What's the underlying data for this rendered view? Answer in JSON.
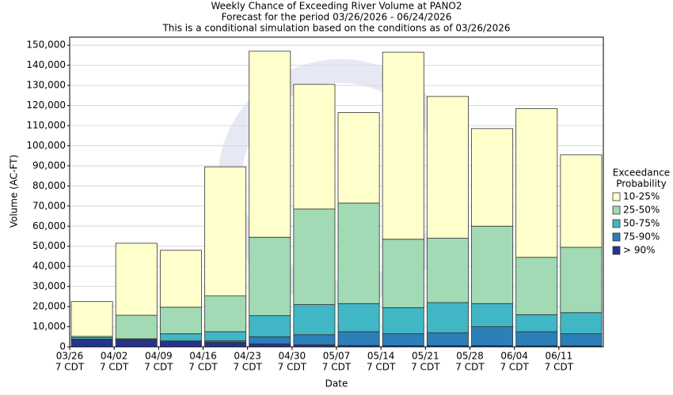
{
  "chart_data": {
    "type": "stacked-bar",
    "title": "Weekly Chance of Exceeding River Volume at PANO2",
    "subtitle": [
      "Forecast for the period 03/26/2026 - 06/24/2026",
      "This is a conditional simulation based on the conditions as of 03/26/2026"
    ],
    "x_label": "Date",
    "y_label": "Volume (AC-FT)",
    "categories": [
      "03/26",
      "04/02",
      "04/09",
      "04/16",
      "04/23",
      "04/30",
      "05/07",
      "05/14",
      "05/21",
      "05/28",
      "06/04",
      "06/11"
    ],
    "category_sublabels": [
      "7 CDT",
      "7 CDT",
      "7 CDT",
      "7 CDT",
      "7 CDT",
      "7 CDT",
      "7 CDT",
      "7 CDT",
      "7 CDT",
      "7 CDT",
      "7 CDT",
      "7 CDT"
    ],
    "legend_title": [
      "Exceedance",
      "Probability"
    ],
    "series": [
      {
        "name": "> 90%",
        "color": "#253494",
        "values": [
          3500,
          3300,
          2500,
          2200,
          1500,
          1000,
          700,
          600,
          600,
          600,
          500,
          500
        ]
      },
      {
        "name": "75-90%",
        "color": "#2c7fb8",
        "values": [
          300,
          300,
          500,
          800,
          3500,
          5000,
          6800,
          5900,
          6400,
          9400,
          7000,
          6000
        ]
      },
      {
        "name": "50-75%",
        "color": "#41b6c4",
        "values": [
          700,
          400,
          3500,
          4500,
          10500,
          15000,
          14000,
          13000,
          15000,
          11500,
          8500,
          10500
        ]
      },
      {
        "name": "25-50%",
        "color": "#a1dab4",
        "values": [
          700,
          11700,
          13200,
          17800,
          39000,
          47500,
          50000,
          34000,
          32000,
          38500,
          28500,
          32500
        ]
      },
      {
        "name": "10-25%",
        "color": "#ffffcc",
        "values": [
          17300,
          35800,
          28300,
          64200,
          92500,
          62000,
          45000,
          93000,
          70500,
          48500,
          74000,
          46000
        ]
      }
    ],
    "ylim": [
      0,
      154000
    ],
    "yticks": [
      0,
      {
        "value": 10000,
        "label": "10,000"
      },
      {
        "value": 20000,
        "label": "20,000"
      },
      {
        "value": 30000,
        "label": "30,000"
      },
      {
        "value": 40000,
        "label": "40,000"
      },
      {
        "value": 50000,
        "label": "50,000"
      },
      {
        "value": 60000,
        "label": "60,000"
      },
      {
        "value": 70000,
        "label": "70,000"
      },
      {
        "value": 80000,
        "label": "80,000"
      },
      {
        "value": 90000,
        "label": "90,000"
      },
      {
        "value": 100000,
        "label": "100,000"
      },
      {
        "value": 110000,
        "label": "110,000"
      },
      {
        "value": 120000,
        "label": "120,000"
      },
      {
        "value": 130000,
        "label": "130,000"
      },
      {
        "value": 140000,
        "label": "140,000"
      },
      {
        "value": 150000,
        "label": "150,000"
      }
    ],
    "grid": true
  }
}
